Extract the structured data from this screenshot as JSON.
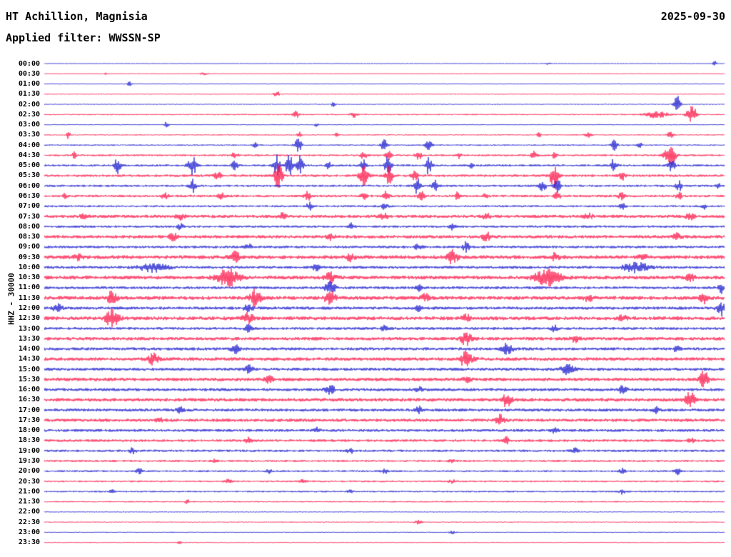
{
  "header": {
    "station": "HT Achillion, Magnisia",
    "date": "2025-09-30",
    "filter_label": "Applied filter: WWSSN-SP"
  },
  "axis": {
    "left_label": "HHZ - 30000"
  },
  "chart_data": {
    "type": "line",
    "subtype": "helicorder-seismogram",
    "title": "HT Achillion, Magnisia",
    "date": "2025-09-30",
    "filter": "WWSSN-SP",
    "channel_scale_label": "HHZ - 30000",
    "minutes_per_row": 30,
    "time_range": [
      "00:00",
      "23:30"
    ],
    "legend": "none",
    "grid": false,
    "colors": {
      "blue": "#1515cd",
      "red": "#fc1245"
    },
    "rows": [
      {
        "t": "00:00",
        "c": 0,
        "n": 0.6,
        "e": [
          [
            0.985,
            4,
            2
          ],
          [
            0.74,
            1.2,
            3
          ]
        ]
      },
      {
        "t": "00:30",
        "c": 1,
        "n": 0.6,
        "e": [
          [
            0.235,
            2.2,
            3
          ],
          [
            0.09,
            1.2,
            2
          ]
        ]
      },
      {
        "t": "01:00",
        "c": 0,
        "n": 0.6,
        "e": [
          [
            0.125,
            3.5,
            2
          ]
        ]
      },
      {
        "t": "01:30",
        "c": 1,
        "n": 0.7,
        "e": [
          [
            0.342,
            4,
            3
          ]
        ]
      },
      {
        "t": "02:00",
        "c": 0,
        "n": 0.7,
        "e": [
          [
            0.425,
            3.5,
            2
          ],
          [
            0.93,
            13,
            3
          ]
        ]
      },
      {
        "t": "02:30",
        "c": 1,
        "n": 0.9,
        "e": [
          [
            0.37,
            5,
            3
          ],
          [
            0.455,
            4,
            3
          ],
          [
            0.952,
            11,
            5
          ],
          [
            0.9,
            5,
            10
          ]
        ]
      },
      {
        "t": "03:00",
        "c": 0,
        "n": 0.7,
        "e": [
          [
            0.18,
            4.5,
            2
          ],
          [
            0.4,
            2.5,
            2
          ]
        ]
      },
      {
        "t": "03:30",
        "c": 1,
        "n": 0.9,
        "e": [
          [
            0.035,
            5,
            2
          ],
          [
            0.375,
            3.5,
            2
          ],
          [
            0.43,
            3.5,
            2
          ],
          [
            0.727,
            4.5,
            2
          ],
          [
            0.8,
            3.5,
            3
          ],
          [
            0.92,
            5,
            3
          ]
        ]
      },
      {
        "t": "04:00",
        "c": 0,
        "n": 1.0,
        "e": [
          [
            0.31,
            4,
            2
          ],
          [
            0.373,
            13,
            3
          ],
          [
            0.5,
            11,
            3
          ],
          [
            0.565,
            9,
            3
          ],
          [
            0.838,
            7,
            3
          ],
          [
            0.875,
            5,
            2
          ]
        ]
      },
      {
        "t": "04:30",
        "c": 1,
        "n": 1.3,
        "e": [
          [
            0.044,
            4,
            2
          ],
          [
            0.28,
            4,
            3
          ],
          [
            0.47,
            7,
            3
          ],
          [
            0.505,
            8,
            3
          ],
          [
            0.55,
            6,
            3
          ],
          [
            0.61,
            4,
            2
          ],
          [
            0.72,
            6,
            3
          ],
          [
            0.75,
            5,
            2
          ],
          [
            0.92,
            15,
            5
          ]
        ]
      },
      {
        "t": "05:00",
        "c": 0,
        "n": 1.5,
        "e": [
          [
            0.108,
            11,
            3
          ],
          [
            0.218,
            13,
            4
          ],
          [
            0.28,
            6,
            3
          ],
          [
            0.342,
            15,
            3
          ],
          [
            0.36,
            17,
            3
          ],
          [
            0.376,
            13,
            3
          ],
          [
            0.418,
            6,
            2
          ],
          [
            0.468,
            9,
            3
          ],
          [
            0.505,
            15,
            3
          ],
          [
            0.565,
            13,
            3
          ],
          [
            0.628,
            5,
            2
          ],
          [
            0.838,
            11,
            3
          ],
          [
            0.922,
            9,
            3
          ]
        ]
      },
      {
        "t": "05:30",
        "c": 1,
        "n": 1.7,
        "e": [
          [
            0.255,
            6,
            3
          ],
          [
            0.344,
            17,
            4
          ],
          [
            0.47,
            15,
            4
          ],
          [
            0.507,
            13,
            3
          ],
          [
            0.544,
            9,
            3
          ],
          [
            0.749,
            17,
            4
          ],
          [
            0.849,
            7,
            3
          ]
        ]
      },
      {
        "t": "06:00",
        "c": 0,
        "n": 1.5,
        "e": [
          [
            0.218,
            9,
            3
          ],
          [
            0.548,
            11,
            3
          ],
          [
            0.575,
            7,
            3
          ],
          [
            0.733,
            9,
            3
          ],
          [
            0.754,
            11,
            3
          ],
          [
            0.933,
            7,
            3
          ],
          [
            0.99,
            5,
            2
          ]
        ]
      },
      {
        "t": "06:30",
        "c": 1,
        "n": 1.7,
        "e": [
          [
            0.03,
            3,
            2
          ],
          [
            0.177,
            4,
            3
          ],
          [
            0.26,
            5,
            3
          ],
          [
            0.387,
            6,
            3
          ],
          [
            0.47,
            5,
            3
          ],
          [
            0.502,
            6,
            3
          ],
          [
            0.554,
            7,
            3
          ],
          [
            0.607,
            5,
            2
          ],
          [
            0.649,
            5,
            2
          ],
          [
            0.754,
            6,
            3
          ],
          [
            0.849,
            6,
            3
          ],
          [
            0.933,
            5,
            3
          ]
        ]
      },
      {
        "t": "07:00",
        "c": 0,
        "n": 1.4,
        "e": [
          [
            0.39,
            5,
            3
          ],
          [
            0.5,
            4,
            3
          ],
          [
            0.85,
            4,
            3
          ],
          [
            0.97,
            4,
            2
          ]
        ]
      },
      {
        "t": "07:30",
        "c": 1,
        "n": 2.2,
        "e": [
          [
            0.06,
            4,
            4
          ],
          [
            0.2,
            4,
            4
          ],
          [
            0.35,
            4,
            4
          ],
          [
            0.5,
            5,
            4
          ],
          [
            0.65,
            4,
            4
          ],
          [
            0.8,
            4,
            4
          ],
          [
            0.95,
            5,
            4
          ]
        ]
      },
      {
        "t": "08:00",
        "c": 0,
        "n": 1.6,
        "e": [
          [
            0.2,
            4,
            3
          ],
          [
            0.45,
            5,
            3
          ],
          [
            0.6,
            4,
            3
          ]
        ]
      },
      {
        "t": "08:30",
        "c": 1,
        "n": 2.3,
        "e": [
          [
            0.19,
            5,
            4
          ],
          [
            0.42,
            4,
            4
          ],
          [
            0.65,
            6,
            4
          ],
          [
            0.93,
            4,
            4
          ]
        ]
      },
      {
        "t": "09:00",
        "c": 0,
        "n": 1.8,
        "e": [
          [
            0.3,
            4,
            3
          ],
          [
            0.55,
            5,
            3
          ],
          [
            0.62,
            7,
            3
          ]
        ]
      },
      {
        "t": "09:30",
        "c": 1,
        "n": 2.6,
        "e": [
          [
            0.05,
            4,
            4
          ],
          [
            0.28,
            7,
            5
          ],
          [
            0.45,
            5,
            4
          ],
          [
            0.6,
            9,
            5
          ],
          [
            0.75,
            5,
            4
          ],
          [
            0.88,
            4,
            4
          ]
        ]
      },
      {
        "t": "10:00",
        "c": 0,
        "n": 1.9,
        "e": [
          [
            0.16,
            6,
            14
          ],
          [
            0.4,
            4,
            4
          ],
          [
            0.87,
            7,
            12
          ]
        ]
      },
      {
        "t": "10:30",
        "c": 1,
        "n": 2.6,
        "e": [
          [
            0.27,
            12,
            10
          ],
          [
            0.42,
            7,
            5
          ],
          [
            0.74,
            11,
            12
          ],
          [
            0.95,
            5,
            4
          ]
        ]
      },
      {
        "t": "11:00",
        "c": 0,
        "n": 1.9,
        "e": [
          [
            0.42,
            9,
            5
          ],
          [
            0.55,
            4,
            3
          ],
          [
            0.995,
            7,
            3
          ]
        ]
      },
      {
        "t": "11:30",
        "c": 1,
        "n": 2.6,
        "e": [
          [
            0.1,
            9,
            5
          ],
          [
            0.31,
            11,
            5
          ],
          [
            0.42,
            9,
            5
          ],
          [
            0.56,
            5,
            4
          ],
          [
            0.8,
            5,
            4
          ],
          [
            0.97,
            7,
            4
          ]
        ]
      },
      {
        "t": "12:00",
        "c": 0,
        "n": 2.1,
        "e": [
          [
            0.02,
            7,
            4
          ],
          [
            0.3,
            5,
            4
          ],
          [
            0.55,
            4,
            3
          ],
          [
            0.995,
            11,
            4
          ]
        ]
      },
      {
        "t": "12:30",
        "c": 1,
        "n": 2.6,
        "e": [
          [
            0.1,
            13,
            6
          ],
          [
            0.3,
            7,
            5
          ],
          [
            0.62,
            5,
            4
          ],
          [
            0.85,
            4,
            4
          ]
        ]
      },
      {
        "t": "13:00",
        "c": 0,
        "n": 1.9,
        "e": [
          [
            0.3,
            5,
            3
          ],
          [
            0.5,
            4,
            3
          ],
          [
            0.75,
            4,
            3
          ]
        ]
      },
      {
        "t": "13:30",
        "c": 1,
        "n": 2.4,
        "e": [
          [
            0.62,
            9,
            5
          ],
          [
            0.78,
            5,
            4
          ]
        ]
      },
      {
        "t": "14:00",
        "c": 0,
        "n": 2.1,
        "e": [
          [
            0.28,
            7,
            4
          ],
          [
            0.68,
            9,
            5
          ],
          [
            0.93,
            4,
            3
          ]
        ]
      },
      {
        "t": "14:30",
        "c": 1,
        "n": 2.4,
        "e": [
          [
            0.16,
            7,
            5
          ],
          [
            0.62,
            11,
            6
          ]
        ]
      },
      {
        "t": "15:00",
        "c": 0,
        "n": 2.1,
        "e": [
          [
            0.3,
            5,
            4
          ],
          [
            0.77,
            7,
            6
          ]
        ]
      },
      {
        "t": "15:30",
        "c": 1,
        "n": 2.4,
        "e": [
          [
            0.33,
            5,
            4
          ],
          [
            0.62,
            4,
            4
          ],
          [
            0.97,
            13,
            4
          ]
        ]
      },
      {
        "t": "16:00",
        "c": 0,
        "n": 2.1,
        "e": [
          [
            0.42,
            7,
            4
          ],
          [
            0.55,
            4,
            3
          ],
          [
            0.85,
            5,
            4
          ]
        ]
      },
      {
        "t": "16:30",
        "c": 1,
        "n": 2.4,
        "e": [
          [
            0.68,
            11,
            4
          ],
          [
            0.95,
            11,
            5
          ]
        ]
      },
      {
        "t": "17:00",
        "c": 0,
        "n": 2.1,
        "e": [
          [
            0.2,
            4,
            3
          ],
          [
            0.55,
            5,
            3
          ],
          [
            0.9,
            4,
            3
          ]
        ]
      },
      {
        "t": "17:30",
        "c": 1,
        "n": 2.2,
        "e": [
          [
            0.17,
            4,
            3
          ],
          [
            0.67,
            7,
            4
          ]
        ]
      },
      {
        "t": "18:00",
        "c": 0,
        "n": 1.9,
        "e": [
          [
            0.4,
            4,
            3
          ],
          [
            0.75,
            3.5,
            3
          ]
        ]
      },
      {
        "t": "18:30",
        "c": 1,
        "n": 1.8,
        "e": [
          [
            0.3,
            3.5,
            3
          ],
          [
            0.68,
            9,
            2
          ],
          [
            0.95,
            3.5,
            3
          ]
        ]
      },
      {
        "t": "19:00",
        "c": 0,
        "n": 1.6,
        "e": [
          [
            0.13,
            4,
            3
          ],
          [
            0.45,
            3.5,
            3
          ],
          [
            0.78,
            3.5,
            3
          ]
        ]
      },
      {
        "t": "19:30",
        "c": 1,
        "n": 1.4,
        "e": [
          [
            0.25,
            2.5,
            3
          ],
          [
            0.6,
            2.5,
            3
          ]
        ]
      },
      {
        "t": "20:00",
        "c": 0,
        "n": 1.3,
        "e": [
          [
            0.14,
            3.5,
            3
          ],
          [
            0.33,
            3.5,
            3
          ],
          [
            0.5,
            3.5,
            3
          ],
          [
            0.85,
            3.5,
            3
          ],
          [
            0.93,
            5,
            3
          ]
        ]
      },
      {
        "t": "20:30",
        "c": 1,
        "n": 1.2,
        "e": [
          [
            0.27,
            3.5,
            3
          ],
          [
            0.38,
            4,
            3
          ],
          [
            0.6,
            2.5,
            3
          ]
        ]
      },
      {
        "t": "21:00",
        "c": 0,
        "n": 1.1,
        "e": [
          [
            0.1,
            2.5,
            3
          ],
          [
            0.45,
            2.5,
            3
          ],
          [
            0.85,
            3.5,
            3
          ]
        ]
      },
      {
        "t": "21:30",
        "c": 1,
        "n": 0.9,
        "e": [
          [
            0.21,
            3.5,
            2
          ]
        ]
      },
      {
        "t": "22:00",
        "c": 0,
        "n": 0.7,
        "e": []
      },
      {
        "t": "22:30",
        "c": 1,
        "n": 0.8,
        "e": [
          [
            0.55,
            2.5,
            3
          ]
        ]
      },
      {
        "t": "23:00",
        "c": 0,
        "n": 0.7,
        "e": [
          [
            0.6,
            2,
            3
          ]
        ]
      },
      {
        "t": "23:30",
        "c": 1,
        "n": 0.7,
        "e": [
          [
            0.2,
            2,
            3
          ]
        ]
      }
    ]
  }
}
